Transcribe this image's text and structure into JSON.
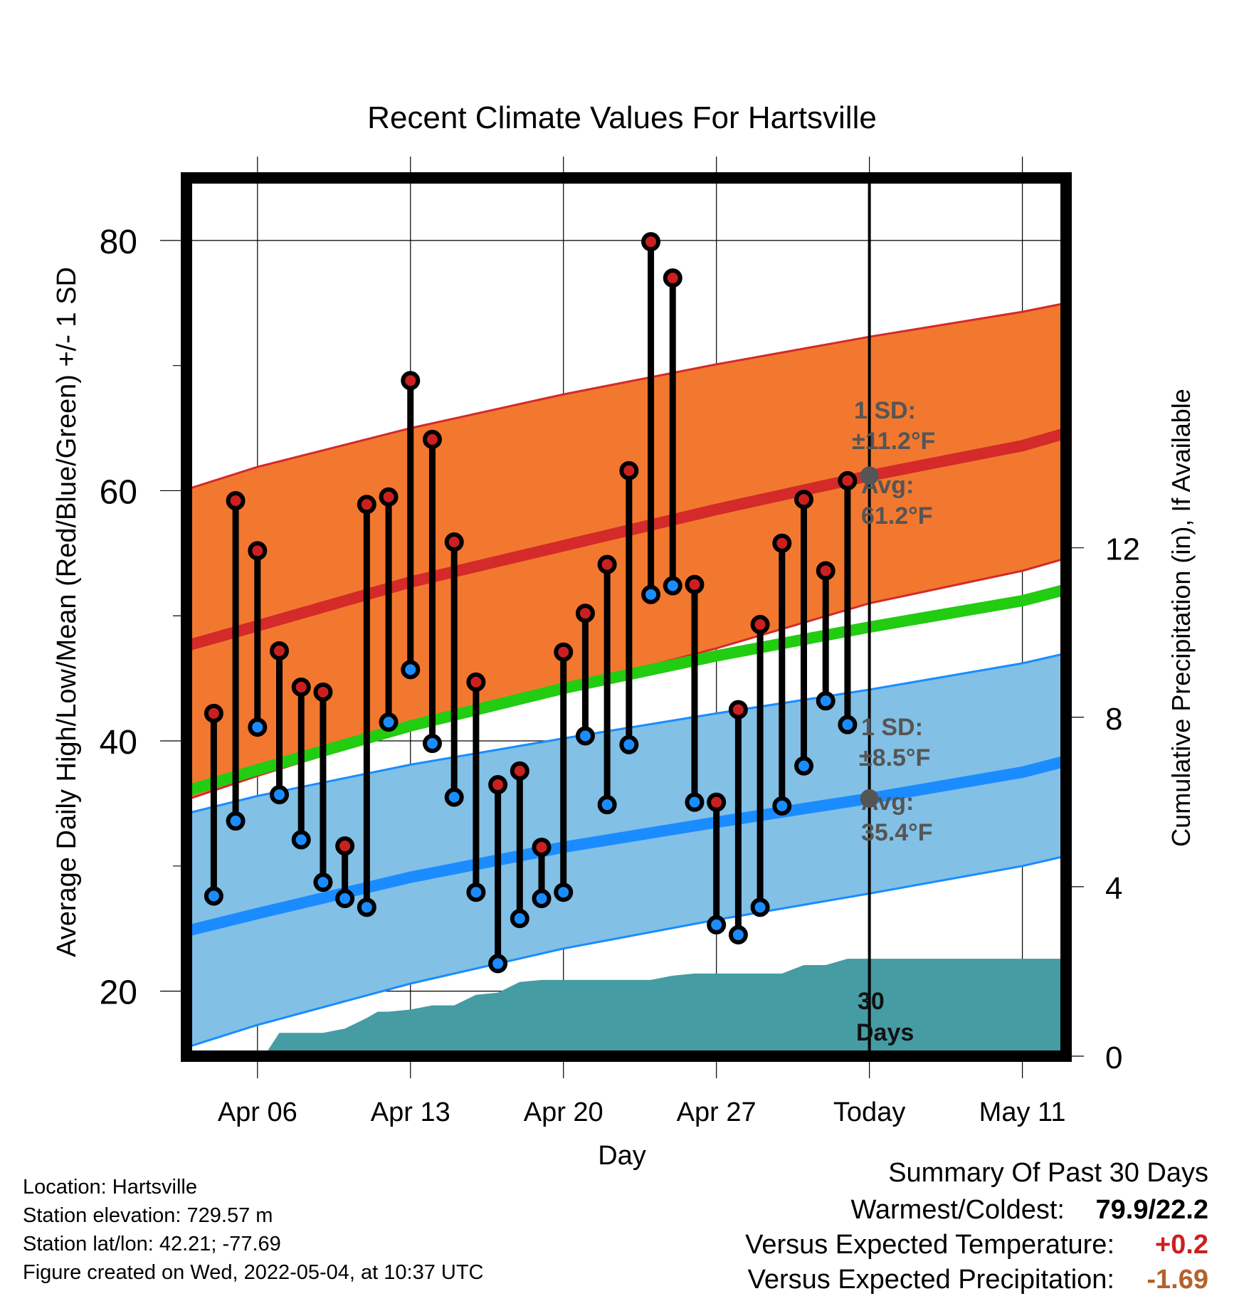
{
  "chart_data": {
    "type": "line",
    "title": "Recent Climate Values For Hartsville",
    "xlabel": "Day",
    "ylabel_left": "Average Daily High/Low/Mean (Red/Blue/Green) +/- 1 SD",
    "ylabel_right": "Cumulative Precipitation (in), If Available",
    "x_ticks": [
      {
        "day": 6,
        "label": "Apr 06"
      },
      {
        "day": 13,
        "label": "Apr 13"
      },
      {
        "day": 20,
        "label": "Apr 20"
      },
      {
        "day": 27,
        "label": "Apr 27"
      },
      {
        "day": 34,
        "label": "Today"
      },
      {
        "day": 41,
        "label": "May 11"
      }
    ],
    "xlim": [
      2.75,
      43.0
    ],
    "ylim_left": [
      14.8,
      85
    ],
    "ylim_right": [
      0,
      20.73
    ],
    "y_ticks_left": [
      20,
      40,
      60,
      80
    ],
    "y_ticks_right": [
      0,
      4,
      8,
      12
    ],
    "today_day": 34,
    "highs": [
      42.2,
      59.2,
      55.2,
      47.2,
      44.3,
      43.9,
      31.6,
      58.9,
      59.5,
      68.8,
      64.1,
      55.9,
      44.7,
      36.5,
      37.6,
      31.5,
      47.1,
      50.2,
      54.1,
      61.6,
      79.9,
      77.0,
      52.5,
      35.1,
      42.5,
      49.3,
      55.8,
      59.3,
      53.6,
      60.8
    ],
    "lows": [
      27.6,
      33.6,
      41.1,
      35.7,
      32.1,
      28.7,
      27.4,
      26.7,
      41.5,
      45.7,
      39.8,
      35.5,
      27.9,
      22.2,
      25.8,
      27.4,
      27.9,
      40.4,
      34.9,
      39.7,
      51.7,
      52.4,
      35.1,
      25.3,
      24.5,
      26.7,
      34.8,
      38.0,
      43.2,
      41.3
    ],
    "normal_high_band": {
      "days": [
        2.75,
        6,
        13,
        20,
        27,
        34,
        41,
        43
      ],
      "mean": [
        47.6,
        49.2,
        52.7,
        55.6,
        58.5,
        61.2,
        63.6,
        64.6
      ],
      "upper": [
        60.1,
        61.9,
        65.0,
        67.7,
        70.1,
        72.3,
        74.3,
        75.0
      ],
      "lower": [
        35.3,
        37.2,
        41.0,
        44.2,
        47.4,
        51.0,
        53.6,
        54.6
      ]
    },
    "normal_mean": {
      "days": [
        2.75,
        6,
        13,
        20,
        27,
        34,
        41,
        43
      ],
      "values": [
        36.0,
        37.7,
        41.2,
        44.2,
        46.8,
        49.1,
        51.2,
        52.1
      ]
    },
    "normal_low_band": {
      "days": [
        2.75,
        6,
        13,
        20,
        27,
        34,
        41,
        43
      ],
      "mean": [
        24.8,
        26.2,
        29.1,
        31.5,
        33.5,
        35.4,
        37.5,
        38.4
      ],
      "upper": [
        34.2,
        35.6,
        38.1,
        40.2,
        42.2,
        44.1,
        46.2,
        47.0
      ],
      "lower": [
        15.5,
        17.3,
        20.6,
        23.4,
        25.7,
        27.8,
        30.0,
        30.8
      ]
    },
    "precip": {
      "days": [
        6.3,
        7,
        9,
        10,
        11,
        11.5,
        12,
        13,
        14,
        15,
        16,
        17,
        18,
        19,
        20,
        21,
        22,
        23,
        24,
        25,
        26,
        27,
        28,
        29,
        30,
        31,
        32,
        33,
        34,
        43
      ],
      "values": [
        0,
        0.55,
        0.55,
        0.65,
        0.9,
        1.05,
        1.05,
        1.1,
        1.2,
        1.2,
        1.45,
        1.5,
        1.75,
        1.8,
        1.8,
        1.8,
        1.8,
        1.8,
        1.8,
        1.9,
        1.95,
        1.95,
        1.95,
        1.95,
        1.95,
        2.15,
        2.15,
        2.3,
        2.3,
        2.3
      ]
    },
    "annotations": {
      "high_sd_1": "1 SD:",
      "high_sd_2": "±11.2°F",
      "high_avg_1": "Avg:",
      "high_avg_2": "61.2°F",
      "low_sd_1": "1 SD:",
      "low_sd_2": "±8.5°F",
      "low_avg_1": "Avg:",
      "low_avg_2": "35.4°F",
      "days_1": "30",
      "days_2": "Days"
    },
    "colors": {
      "high_band": "#f2782f",
      "high_line": "#d42a2a",
      "mean_line": "#22cc11",
      "low_band": "#82c0e6",
      "low_line": "#1a8cff",
      "precip": "#459ca3",
      "marker_high": "#cc2020",
      "marker_low": "#1a8cff",
      "annotation": "#555555"
    }
  },
  "footer": {
    "location": "Location: Hartsville",
    "elevation": "Station elevation: 729.57 m",
    "latlon": "Station lat/lon: 42.21; -77.69",
    "created": "Figure created on Wed, 2022-05-04, at 10:37 UTC"
  },
  "summary": {
    "heading": "Summary Of Past 30 Days",
    "warm_label": "Warmest/Coldest:",
    "warm_value": "79.9/22.2",
    "temp_label": "Versus Expected Temperature:",
    "temp_value": "+0.2",
    "temp_color": "#cc2020",
    "precip_label": "Versus Expected Precipitation:",
    "precip_value": "-1.69",
    "precip_color": "#b5612a"
  }
}
